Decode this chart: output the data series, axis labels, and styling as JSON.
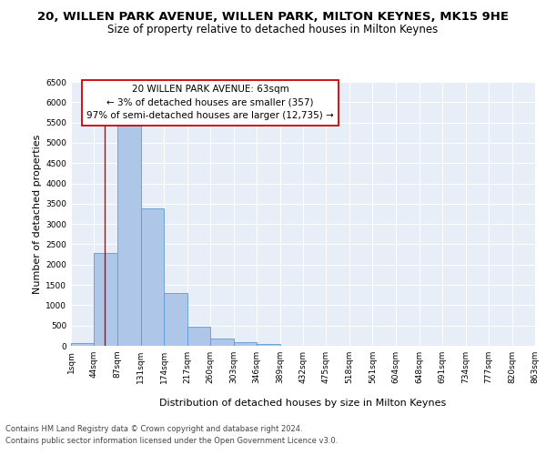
{
  "title": "20, WILLEN PARK AVENUE, WILLEN PARK, MILTON KEYNES, MK15 9HE",
  "subtitle": "Size of property relative to detached houses in Milton Keynes",
  "xlabel": "Distribution of detached houses by size in Milton Keynes",
  "ylabel": "Number of detached properties",
  "bar_edges": [
    1,
    44,
    87,
    131,
    174,
    217,
    260,
    303,
    346,
    389,
    432,
    475,
    518,
    561,
    604,
    648,
    691,
    734,
    777,
    820,
    863
  ],
  "bar_heights": [
    75,
    2280,
    5430,
    3380,
    1310,
    470,
    170,
    95,
    35,
    0,
    0,
    0,
    0,
    0,
    0,
    0,
    0,
    0,
    0,
    0
  ],
  "bar_color": "#aec6e8",
  "bar_edge_color": "#5b9bd5",
  "vline_x": 63,
  "vline_color": "#cc0000",
  "annotation_text": "20 WILLEN PARK AVENUE: 63sqm\n← 3% of detached houses are smaller (357)\n97% of semi-detached houses are larger (12,735) →",
  "box_color": "#ffffff",
  "box_edge_color": "#cc0000",
  "ylim": [
    0,
    6500
  ],
  "yticks": [
    0,
    500,
    1000,
    1500,
    2000,
    2500,
    3000,
    3500,
    4000,
    4500,
    5000,
    5500,
    6000,
    6500
  ],
  "xtick_labels": [
    "1sqm",
    "44sqm",
    "87sqm",
    "131sqm",
    "174sqm",
    "217sqm",
    "260sqm",
    "303sqm",
    "346sqm",
    "389sqm",
    "432sqm",
    "475sqm",
    "518sqm",
    "561sqm",
    "604sqm",
    "648sqm",
    "691sqm",
    "734sqm",
    "777sqm",
    "820sqm",
    "863sqm"
  ],
  "footer_line1": "Contains HM Land Registry data © Crown copyright and database right 2024.",
  "footer_line2": "Contains public sector information licensed under the Open Government Licence v3.0.",
  "bg_color": "#ffffff",
  "plot_bg_color": "#e8eef8",
  "grid_color": "#ffffff",
  "title_fontsize": 9.5,
  "subtitle_fontsize": 8.5,
  "axis_label_fontsize": 8,
  "tick_fontsize": 6.5,
  "annotation_fontsize": 7.5,
  "footer_fontsize": 6
}
